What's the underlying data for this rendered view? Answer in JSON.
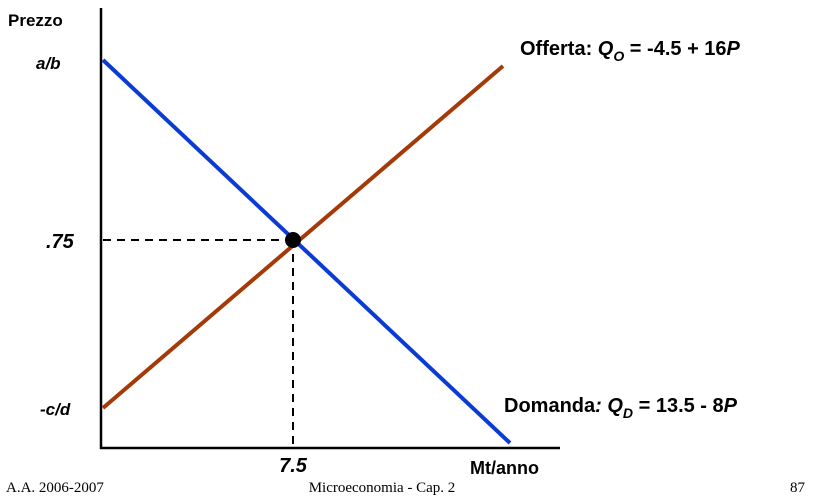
{
  "axes": {
    "y_label": "Prezzo",
    "x_label": "Mt/anno",
    "y_ticks": [
      "a/b",
      ".75",
      "-c/d"
    ],
    "x_ticks": [
      "7.5"
    ]
  },
  "supply": {
    "name": "Offerta: ",
    "var": "Q",
    "sub": "O",
    "eq": " = -4.5 + 16",
    "p": "P"
  },
  "demand": {
    "name": "Domanda",
    "colon_var": ": Q",
    "sub": "D",
    "eq": " = 13.5 - 8",
    "p": "P"
  },
  "footer": {
    "left": "A.A. 2006-2007",
    "center": "Microeconomia - Cap. 2",
    "right": "87"
  }
}
